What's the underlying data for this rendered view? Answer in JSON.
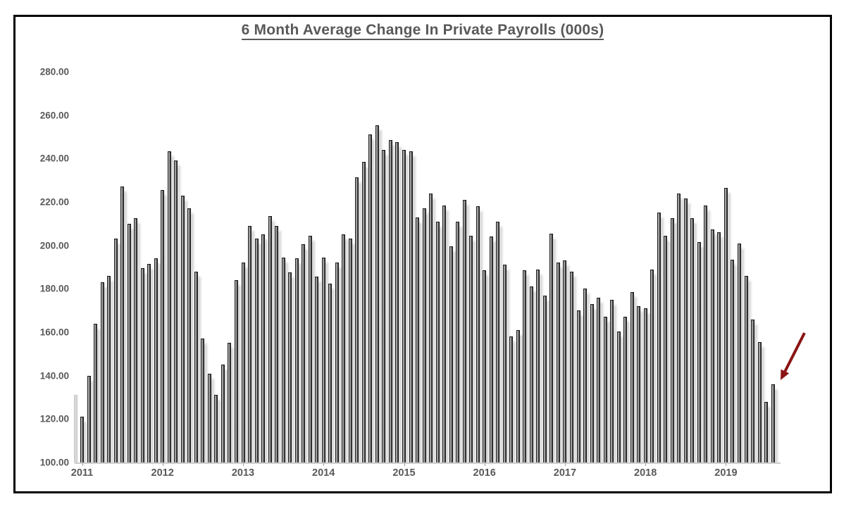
{
  "title": "6 Month Average Change In Private Payrolls (000s)",
  "colors": {
    "title_text": "#595959",
    "axis_label_text": "#595959",
    "bar_border": "#161616",
    "bar_fill_light": "#c6c6c6",
    "bar_fill_dark": "#2d2d2d",
    "bar_shadow": "rgba(0,0,0,0.17)",
    "frame_border": "#000000",
    "baseline": "#cdcdcd",
    "arrow": "#8b1414"
  },
  "chart_data": {
    "type": "bar",
    "title": "6 Month Average Change In Private Payrolls (000s)",
    "xlabel": "",
    "ylabel": "",
    "unit": "thousands of jobs (6-month average change, private payrolls)",
    "ylim": [
      100,
      290
    ],
    "grid": false,
    "legend_position": "none",
    "y_ticks": [
      "280.00",
      "260.00",
      "240.00",
      "220.00",
      "200.00",
      "180.00",
      "160.00",
      "140.00",
      "120.00",
      "100.00"
    ],
    "x_ticks": [
      "2011",
      "2012",
      "2013",
      "2014",
      "2015",
      "2016",
      "2017",
      "2018",
      "2019"
    ],
    "first_bar_clipped": true,
    "annotation": {
      "type": "arrow",
      "color": "#8b1414",
      "points_to": "Aug 2019 (final bar)"
    },
    "series": [
      {
        "name": "6 Month Average Change In Private Payrolls",
        "points": [
          [
            "Dec 2010",
            131
          ],
          [
            "Jan 2011",
            121
          ],
          [
            "Feb 2011",
            140
          ],
          [
            "Mar 2011",
            164
          ],
          [
            "Apr 2011",
            183
          ],
          [
            "May 2011",
            186
          ],
          [
            "Jun 2011",
            203
          ],
          [
            "Jul 2011",
            227
          ],
          [
            "Aug 2011",
            210
          ],
          [
            "Sep 2011",
            212.5
          ],
          [
            "Oct 2011",
            189.5
          ],
          [
            "Nov 2011",
            191.5
          ],
          [
            "Dec 2011",
            194
          ],
          [
            "Jan 2012",
            225.5
          ],
          [
            "Feb 2012",
            243.5
          ],
          [
            "Mar 2012",
            239
          ],
          [
            "Apr 2012",
            223
          ],
          [
            "May 2012",
            217
          ],
          [
            "Jun 2012",
            188
          ],
          [
            "Jul 2012",
            157
          ],
          [
            "Aug 2012",
            141
          ],
          [
            "Sep 2012",
            131
          ],
          [
            "Oct 2012",
            145
          ],
          [
            "Nov 2012",
            155
          ],
          [
            "Dec 2012",
            184
          ],
          [
            "Jan 2013",
            192
          ],
          [
            "Feb 2013",
            209
          ],
          [
            "Mar 2013",
            203
          ],
          [
            "Apr 2013",
            205
          ],
          [
            "May 2013",
            213.5
          ],
          [
            "Jun 2013",
            209
          ],
          [
            "Jul 2013",
            194.5
          ],
          [
            "Aug 2013",
            187.5
          ],
          [
            "Sep 2013",
            194
          ],
          [
            "Oct 2013",
            200.5
          ],
          [
            "Nov 2013",
            204.5
          ],
          [
            "Dec 2013",
            185.5
          ],
          [
            "Jan 2014",
            194.5
          ],
          [
            "Feb 2014",
            182.5
          ],
          [
            "Mar 2014",
            192
          ],
          [
            "Apr 2014",
            205
          ],
          [
            "May 2014",
            203
          ],
          [
            "Jun 2014",
            231.5
          ],
          [
            "Jul 2014",
            238.5
          ],
          [
            "Aug 2014",
            251
          ],
          [
            "Sep 2014",
            255.5
          ],
          [
            "Oct 2014",
            244
          ],
          [
            "Nov 2014",
            248.5
          ],
          [
            "Dec 2014",
            247.5
          ],
          [
            "Jan 2015",
            244
          ],
          [
            "Feb 2015",
            243.5
          ],
          [
            "Mar 2015",
            213
          ],
          [
            "Apr 2015",
            217
          ],
          [
            "May 2015",
            224
          ],
          [
            "Jun 2015",
            211
          ],
          [
            "Jul 2015",
            218.5
          ],
          [
            "Aug 2015",
            199.5
          ],
          [
            "Sep 2015",
            211
          ],
          [
            "Oct 2015",
            221
          ],
          [
            "Nov 2015",
            204.5
          ],
          [
            "Dec 2015",
            218
          ],
          [
            "Jan 2016",
            188.5
          ],
          [
            "Feb 2016",
            204
          ],
          [
            "Mar 2016",
            211
          ],
          [
            "Apr 2016",
            191
          ],
          [
            "May 2016",
            158
          ],
          [
            "Jun 2016",
            161
          ],
          [
            "Jul 2016",
            188.5
          ],
          [
            "Aug 2016",
            181
          ],
          [
            "Sep 2016",
            189
          ],
          [
            "Oct 2016",
            177
          ],
          [
            "Nov 2016",
            205.5
          ],
          [
            "Dec 2016",
            192
          ],
          [
            "Jan 2017",
            193
          ],
          [
            "Feb 2017",
            188
          ],
          [
            "Mar 2017",
            170
          ],
          [
            "Apr 2017",
            180
          ],
          [
            "May 2017",
            173
          ],
          [
            "Jun 2017",
            176
          ],
          [
            "Jul 2017",
            167
          ],
          [
            "Aug 2017",
            175
          ],
          [
            "Sep 2017",
            160.5
          ],
          [
            "Oct 2017",
            167
          ],
          [
            "Nov 2017",
            178.5
          ],
          [
            "Dec 2017",
            172
          ],
          [
            "Jan 2018",
            171
          ],
          [
            "Feb 2018",
            189
          ],
          [
            "Mar 2018",
            215
          ],
          [
            "Apr 2018",
            204.5
          ],
          [
            "May 2018",
            212.5
          ],
          [
            "Jun 2018",
            224
          ],
          [
            "Jul 2018",
            221.5
          ],
          [
            "Aug 2018",
            212.5
          ],
          [
            "Sep 2018",
            201.5
          ],
          [
            "Oct 2018",
            218.5
          ],
          [
            "Nov 2018",
            207.5
          ],
          [
            "Dec 2018",
            206
          ],
          [
            "Jan 2019",
            226.5
          ],
          [
            "Feb 2019",
            193.5
          ],
          [
            "Mar 2019",
            201
          ],
          [
            "Apr 2019",
            186
          ],
          [
            "May 2019",
            166
          ],
          [
            "Jun 2019",
            155.5
          ],
          [
            "Jul 2019",
            128
          ],
          [
            "Aug 2019",
            136
          ]
        ]
      }
    ]
  }
}
